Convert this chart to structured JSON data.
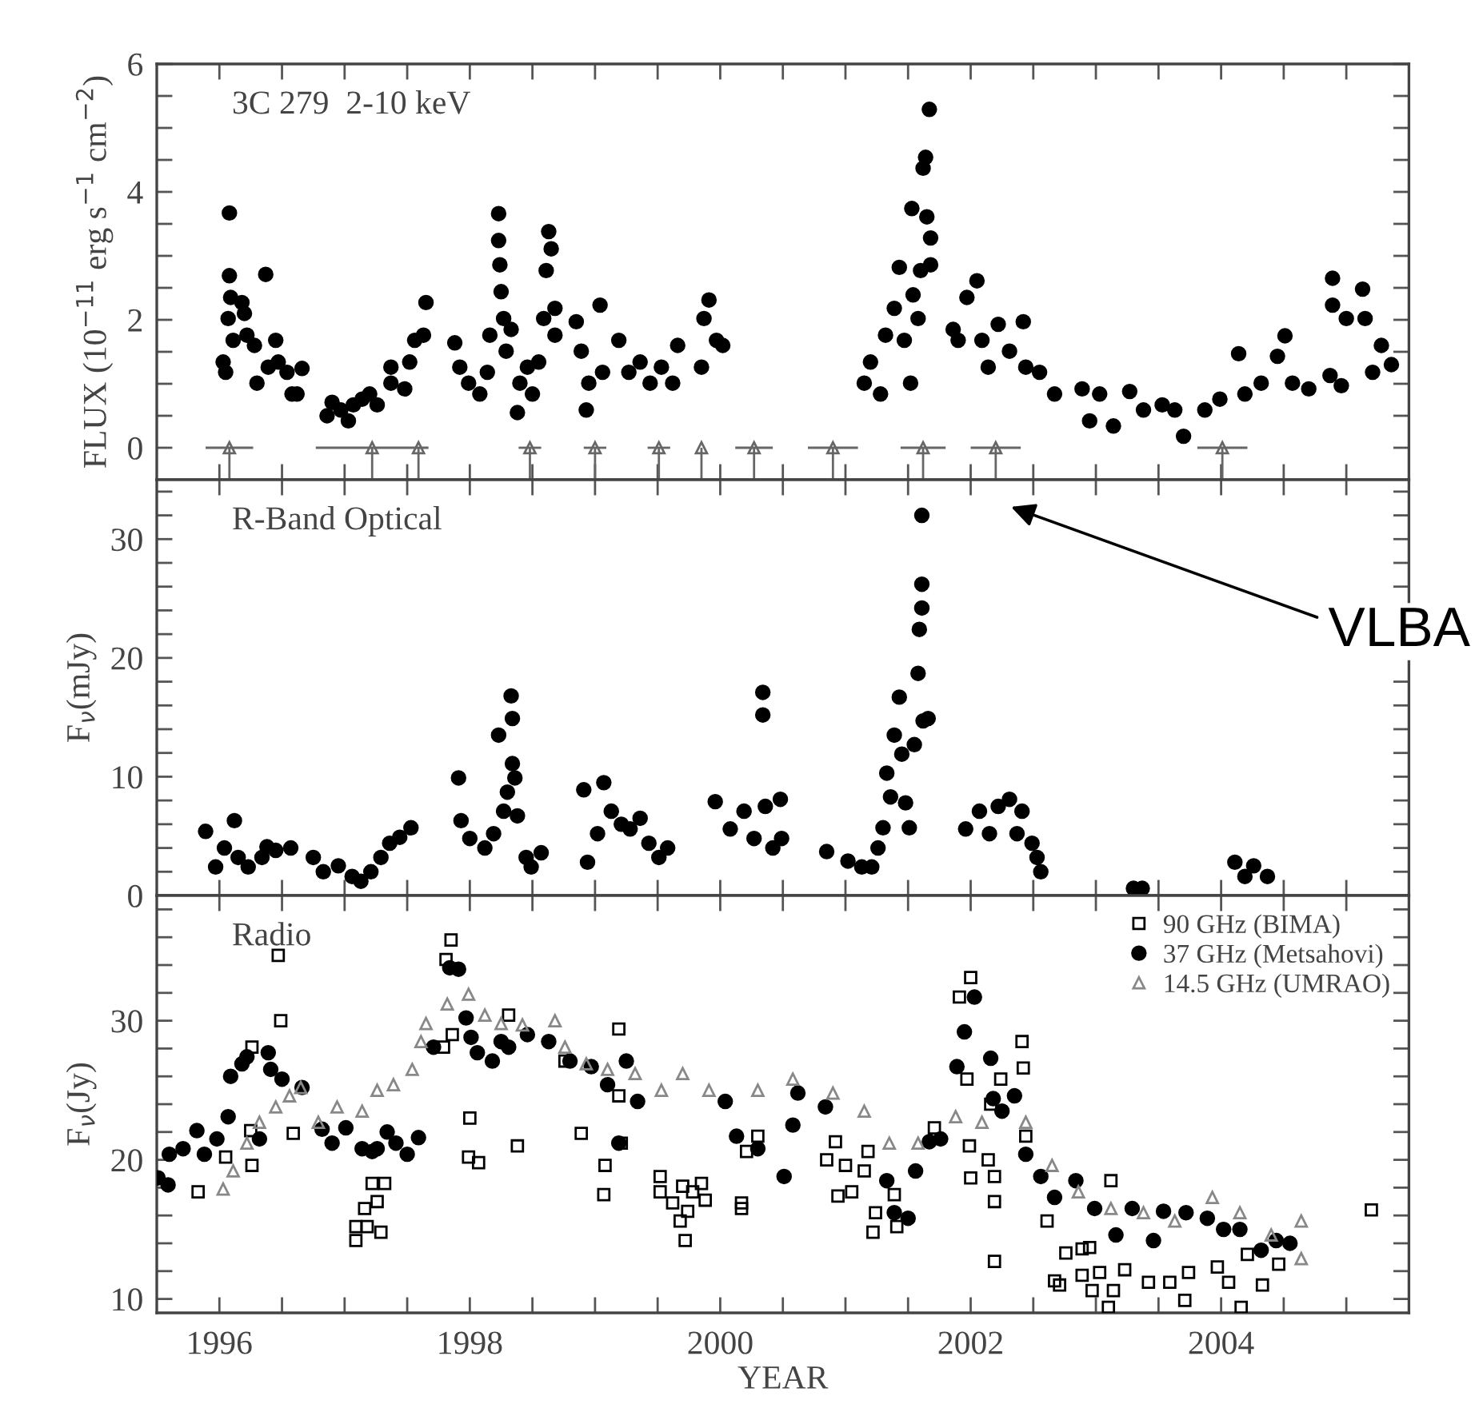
{
  "chart_data": [
    {
      "type": "scatter",
      "title": "3C 279  2-10 keV",
      "ylabel": "FLUX (10$^{−11}$ erg s$^{−1}$ cm$^{−2}$)",
      "xlim": [
        1995.5,
        2005.5
      ],
      "ylim": [
        -0.5,
        6
      ],
      "tick_labels": "y",
      "xticks": [
        {
          "value": 1996,
          "label": null
        },
        {
          "value": 1996.5,
          "label": null
        },
        {
          "value": 1997,
          "label": null
        },
        {
          "value": 1997.5,
          "label": null
        },
        {
          "value": 1998,
          "label": null
        },
        {
          "value": 1998.5,
          "label": null
        },
        {
          "value": 1999,
          "label": null
        },
        {
          "value": 1999.5,
          "label": null
        },
        {
          "value": 2000,
          "label": null
        },
        {
          "value": 2000.5,
          "label": null
        },
        {
          "value": 2001,
          "label": null
        },
        {
          "value": 2001.5,
          "label": null
        },
        {
          "value": 2002,
          "label": null
        },
        {
          "value": 2002.5,
          "label": null
        },
        {
          "value": 2003,
          "label": null
        },
        {
          "value": 2003.5,
          "label": null
        },
        {
          "value": 2004,
          "label": null
        },
        {
          "value": 2004.5,
          "label": null
        },
        {
          "value": 2005,
          "label": null
        }
      ],
      "yticks": [
        0,
        {
          "value": 0.5,
          "label": null
        },
        {
          "value": 1,
          "label": null
        },
        {
          "value": 1.5,
          "label": null
        },
        2,
        {
          "value": 2.5,
          "label": null
        },
        {
          "value": 3,
          "label": null
        },
        {
          "value": 3.5,
          "label": null
        },
        4,
        {
          "value": 4.5,
          "label": null
        },
        {
          "value": 5,
          "label": null
        },
        {
          "value": 5.5,
          "label": null
        },
        6
      ],
      "series": [
        {
          "marker": "circle",
          "color": "#000000",
          "x": [
            1996.03,
            1996.05,
            1996.07,
            1996.08,
            1996.08,
            1996.09,
            1996.11,
            1996.18,
            1996.2,
            1996.22,
            1996.28,
            1996.3,
            1996.37,
            1996.39,
            1996.45,
            1996.47,
            1996.54,
            1996.58,
            1996.62,
            1996.66,
            1996.86,
            1996.9,
            1996.97,
            1997.03,
            1997.07,
            1997.14,
            1997.2,
            1997.26,
            1997.37,
            1997.37,
            1997.48,
            1997.52,
            1997.56,
            1997.63,
            1997.65,
            1997.88,
            1997.92,
            1997.99,
            1998.08,
            1998.14,
            1998.16,
            1998.23,
            1998.23,
            1998.24,
            1998.25,
            1998.27,
            1998.29,
            1998.33,
            1998.38,
            1998.4,
            1998.46,
            1998.5,
            1998.55,
            1998.59,
            1998.61,
            1998.63,
            1998.65,
            1998.68,
            1998.68,
            1998.85,
            1998.89,
            1998.93,
            1998.95,
            1999.04,
            1999.06,
            1999.19,
            1999.27,
            1999.36,
            1999.44,
            1999.53,
            1999.62,
            1999.66,
            1999.85,
            1999.87,
            1999.91,
            1999.97,
            2000.02,
            2001.15,
            2001.2,
            2001.28,
            2001.32,
            2001.39,
            2001.43,
            2001.47,
            2001.52,
            2001.53,
            2001.54,
            2001.58,
            2001.6,
            2001.62,
            2001.64,
            2001.65,
            2001.67,
            2001.68,
            2001.68,
            2001.86,
            2001.9,
            2001.97,
            2002.05,
            2002.09,
            2002.14,
            2002.22,
            2002.31,
            2002.42,
            2002.44,
            2002.55,
            2002.67,
            2002.89,
            2002.95,
            2003.03,
            2003.14,
            2003.27,
            2003.38,
            2003.53,
            2003.63,
            2003.7,
            2003.87,
            2003.99,
            2004.14,
            2004.19,
            2004.32,
            2004.45,
            2004.51,
            2004.57,
            2004.7,
            2004.87,
            2004.89,
            2004.89,
            2004.96,
            2005.0,
            2005.13,
            2005.15,
            2005.21,
            2005.28,
            2005.36
          ],
          "values": [
            1.34,
            1.18,
            2.02,
            3.67,
            2.69,
            2.35,
            1.68,
            2.27,
            2.1,
            1.76,
            1.6,
            1.01,
            2.71,
            1.26,
            1.68,
            1.34,
            1.18,
            0.84,
            0.84,
            1.24,
            0.5,
            0.71,
            0.59,
            0.42,
            0.67,
            0.76,
            0.84,
            0.67,
            1.26,
            1.01,
            0.92,
            1.34,
            1.68,
            1.76,
            2.27,
            1.64,
            1.26,
            1.01,
            0.84,
            1.18,
            1.76,
            3.66,
            3.24,
            2.86,
            2.44,
            2.02,
            1.51,
            1.85,
            0.55,
            1.01,
            1.26,
            0.84,
            1.34,
            2.02,
            2.77,
            3.38,
            3.11,
            2.18,
            1.76,
            1.97,
            1.51,
            0.59,
            1.01,
            2.23,
            1.18,
            1.68,
            1.18,
            1.34,
            1.01,
            1.26,
            1.01,
            1.6,
            1.26,
            2.02,
            2.31,
            1.68,
            1.6,
            1.01,
            1.34,
            0.84,
            1.76,
            2.18,
            2.82,
            1.68,
            1.01,
            3.74,
            2.39,
            2.02,
            2.77,
            4.37,
            4.54,
            3.61,
            5.29,
            3.28,
            2.86,
            1.85,
            1.68,
            2.35,
            2.61,
            1.68,
            1.26,
            1.93,
            1.51,
            1.97,
            1.26,
            1.18,
            0.84,
            0.92,
            0.42,
            0.84,
            0.34,
            0.88,
            0.59,
            0.67,
            0.59,
            0.18,
            0.59,
            0.76,
            1.47,
            0.84,
            1.01,
            1.43,
            1.75,
            1.01,
            0.92,
            1.13,
            2.65,
            2.23,
            0.97,
            2.02,
            2.48,
            2.02,
            1.18,
            1.6,
            1.3
          ]
        },
        {
          "marker": "triangle",
          "color": "#666666",
          "x": [
            1996.08,
            1997.22,
            1997.59,
            1998.48,
            1999.0,
            1999.51,
            1999.85,
            2000.27,
            2000.9,
            2001.62,
            2002.2,
            2004.01
          ],
          "values": [
            0,
            0,
            0,
            0,
            0,
            0,
            0,
            0,
            0,
            0,
            0,
            0
          ],
          "errors": [
            [
              -0.5,
              0
            ],
            [
              -0.5,
              0
            ],
            [
              -0.5,
              0
            ],
            [
              -0.5,
              0
            ],
            [
              -0.5,
              0
            ],
            [
              -0.5,
              0
            ],
            [
              -0.5,
              0
            ],
            [
              -0.5,
              0
            ],
            [
              -0.5,
              0
            ],
            [
              -0.5,
              0
            ],
            [
              -0.5,
              0
            ],
            [
              -0.5,
              0
            ]
          ],
          "xerrors": [
            0.19,
            0.45,
            null,
            0.09,
            0.09,
            0.09,
            null,
            0.15,
            0.2,
            0.18,
            0.2,
            0.2
          ]
        }
      ]
    },
    {
      "type": "scatter",
      "title": "R-Band Optical",
      "ylabel": "F$_{ν}$(mJy)",
      "xlim": [
        1995.5,
        2005.5
      ],
      "ylim": [
        0,
        35
      ],
      "tick_labels": "y",
      "xticks": [
        {
          "value": 1996,
          "label": null
        },
        {
          "value": 1996.5,
          "label": null
        },
        {
          "value": 1997,
          "label": null
        },
        {
          "value": 1997.5,
          "label": null
        },
        {
          "value": 1998,
          "label": null
        },
        {
          "value": 1998.5,
          "label": null
        },
        {
          "value": 1999,
          "label": null
        },
        {
          "value": 1999.5,
          "label": null
        },
        {
          "value": 2000,
          "label": null
        },
        {
          "value": 2000.5,
          "label": null
        },
        {
          "value": 2001,
          "label": null
        },
        {
          "value": 2001.5,
          "label": null
        },
        {
          "value": 2002,
          "label": null
        },
        {
          "value": 2002.5,
          "label": null
        },
        {
          "value": 2003,
          "label": null
        },
        {
          "value": 2003.5,
          "label": null
        },
        {
          "value": 2004,
          "label": null
        },
        {
          "value": 2004.5,
          "label": null
        },
        {
          "value": 2005,
          "label": null
        }
      ],
      "yticks": [
        0,
        {
          "value": 2,
          "label": null
        },
        {
          "value": 4,
          "label": null
        },
        {
          "value": 6,
          "label": null
        },
        {
          "value": 8,
          "label": null
        },
        10,
        {
          "value": 12,
          "label": null
        },
        {
          "value": 14,
          "label": null
        },
        {
          "value": 16,
          "label": null
        },
        {
          "value": 18,
          "label": null
        },
        20,
        {
          "value": 22,
          "label": null
        },
        {
          "value": 24,
          "label": null
        },
        {
          "value": 26,
          "label": null
        },
        {
          "value": 28,
          "label": null
        },
        30,
        {
          "value": 32,
          "label": null
        },
        {
          "value": 34,
          "label": null
        }
      ],
      "annotations": [
        "VLBA"
      ],
      "series": [
        {
          "marker": "circle",
          "color": "#000000",
          "x": [
            1995.89,
            1995.97,
            1996.04,
            1996.12,
            1996.15,
            1996.23,
            1996.34,
            1996.38,
            1996.45,
            1996.57,
            1996.75,
            1996.83,
            1996.95,
            1997.06,
            1997.13,
            1997.21,
            1997.29,
            1997.36,
            1997.44,
            1997.53,
            1997.91,
            1997.93,
            1998.0,
            1998.12,
            1998.19,
            1998.23,
            1998.27,
            1998.3,
            1998.33,
            1998.34,
            1998.34,
            1998.36,
            1998.38,
            1998.45,
            1998.49,
            1998.57,
            1998.91,
            1998.94,
            1999.02,
            1999.07,
            1999.13,
            1999.21,
            1999.28,
            1999.36,
            1999.43,
            1999.51,
            1999.58,
            1999.96,
            2000.08,
            2000.19,
            2000.27,
            2000.34,
            2000.34,
            2000.36,
            2000.42,
            2000.48,
            2000.49,
            2000.85,
            2001.02,
            2001.13,
            2001.21,
            2001.26,
            2001.3,
            2001.33,
            2001.36,
            2001.39,
            2001.43,
            2001.45,
            2001.48,
            2001.51,
            2001.55,
            2001.58,
            2001.59,
            2001.61,
            2001.61,
            2001.61,
            2001.62,
            2001.66,
            2001.96,
            2002.07,
            2002.15,
            2002.22,
            2002.31,
            2002.37,
            2002.41,
            2002.49,
            2002.53,
            2002.56,
            2003.3,
            2003.37,
            2004.11,
            2004.19,
            2004.26,
            2004.37
          ],
          "values": [
            5.4,
            2.4,
            4.0,
            6.3,
            3.2,
            2.4,
            3.2,
            4.1,
            3.8,
            4.0,
            3.2,
            2.0,
            2.5,
            1.6,
            1.2,
            2.0,
            3.2,
            4.4,
            4.9,
            5.7,
            9.9,
            6.3,
            4.8,
            4.0,
            5.2,
            13.5,
            7.1,
            8.7,
            16.8,
            14.9,
            11.1,
            9.9,
            6.7,
            3.2,
            2.4,
            3.6,
            8.9,
            2.8,
            5.2,
            9.5,
            7.1,
            6.0,
            5.6,
            6.5,
            4.4,
            3.2,
            4.0,
            7.9,
            5.6,
            7.1,
            4.8,
            17.1,
            15.2,
            7.5,
            4.0,
            8.1,
            4.8,
            3.7,
            2.9,
            2.4,
            2.4,
            4.0,
            5.7,
            10.3,
            8.3,
            13.5,
            16.7,
            11.9,
            7.8,
            5.7,
            12.7,
            18.7,
            22.4,
            24.2,
            26.2,
            32.0,
            14.7,
            14.9,
            5.6,
            7.1,
            5.2,
            7.5,
            8.1,
            5.2,
            7.1,
            4.4,
            3.2,
            2.0,
            0.6,
            0.6,
            2.8,
            1.6,
            2.5,
            1.6
          ]
        }
      ]
    },
    {
      "type": "scatter",
      "title": "Radio",
      "xlabel": "YEAR",
      "ylabel": "F$_{ν}$(Jy)",
      "xlim": [
        1995.5,
        2005.5
      ],
      "ylim": [
        9,
        39
      ],
      "legend": "top right",
      "xticks": [
        {
          "value": 1996,
          "label": "1996"
        },
        {
          "value": 1996.5,
          "label": null
        },
        {
          "value": 1997,
          "label": null
        },
        {
          "value": 1997.5,
          "label": null
        },
        {
          "value": 1998,
          "label": "1998"
        },
        {
          "value": 1998.5,
          "label": null
        },
        {
          "value": 1999,
          "label": null
        },
        {
          "value": 1999.5,
          "label": null
        },
        {
          "value": 2000,
          "label": "2000"
        },
        {
          "value": 2000.5,
          "label": null
        },
        {
          "value": 2001,
          "label": null
        },
        {
          "value": 2001.5,
          "label": null
        },
        {
          "value": 2002,
          "label": "2002"
        },
        {
          "value": 2002.5,
          "label": null
        },
        {
          "value": 2003,
          "label": null
        },
        {
          "value": 2003.5,
          "label": null
        },
        {
          "value": 2004,
          "label": "2004"
        },
        {
          "value": 2004.5,
          "label": null
        },
        {
          "value": 2005,
          "label": null
        }
      ],
      "yticks": [
        10,
        {
          "value": 12,
          "label": null
        },
        {
          "value": 14,
          "label": null
        },
        {
          "value": 16,
          "label": null
        },
        {
          "value": 18,
          "label": null
        },
        20,
        {
          "value": 22,
          "label": null
        },
        {
          "value": 24,
          "label": null
        },
        {
          "value": 26,
          "label": null
        },
        {
          "value": 28,
          "label": null
        },
        30,
        {
          "value": 32,
          "label": null
        },
        {
          "value": 34,
          "label": null
        },
        {
          "value": 36,
          "label": null
        },
        {
          "value": 38,
          "label": null
        }
      ],
      "series": [
        {
          "name": "90 GHz (BIMA)",
          "marker": "square",
          "color": "#000000",
          "x": [
            1995.83,
            1996.05,
            1996.25,
            1996.26,
            1996.26,
            1996.47,
            1996.49,
            1996.59,
            1997.09,
            1997.09,
            1997.16,
            1997.18,
            1997.22,
            1997.26,
            1997.29,
            1997.32,
            1997.79,
            1997.81,
            1997.85,
            1997.86,
            1998.0,
            1997.99,
            1998.07,
            1998.31,
            1998.38,
            1998.89,
            1998.76,
            1999.07,
            1999.08,
            1999.19,
            1999.19,
            1999.21,
            1999.52,
            1999.52,
            1999.62,
            1999.68,
            1999.7,
            1999.72,
            1999.74,
            1999.78,
            1999.85,
            1999.88,
            2000.17,
            2000.17,
            2000.21,
            2000.3,
            2000.85,
            2000.92,
            2000.94,
            2001.0,
            2001.05,
            2001.15,
            2001.18,
            2001.22,
            2001.24,
            2001.39,
            2001.41,
            2001.71,
            2001.91,
            2001.97,
            2001.99,
            2002.0,
            2002.0,
            2002.14,
            2002.16,
            2002.19,
            2002.19,
            2002.19,
            2002.24,
            2002.41,
            2002.42,
            2002.44,
            2002.61,
            2002.76,
            2002.89,
            2002.95,
            2002.67,
            2002.71,
            2002.89,
            2002.97,
            2003.03,
            2003.1,
            2003.12,
            2003.14,
            2003.23,
            2003.42,
            2003.59,
            2003.71,
            2003.74,
            2003.97,
            2004.06,
            2004.16,
            2004.21,
            2004.33,
            2004.46,
            2005.2
          ],
          "values": [
            17.7,
            20.2,
            22.1,
            19.6,
            28.1,
            34.7,
            30.0,
            21.9,
            15.2,
            14.2,
            16.5,
            15.2,
            18.3,
            17.0,
            14.8,
            18.3,
            28.1,
            34.4,
            35.8,
            29.0,
            23.0,
            20.2,
            19.8,
            30.4,
            21.0,
            21.9,
            27.1,
            17.5,
            19.6,
            29.4,
            24.6,
            21.2,
            18.8,
            17.7,
            16.9,
            15.6,
            18.1,
            14.2,
            16.3,
            17.7,
            18.3,
            17.1,
            16.9,
            16.5,
            20.6,
            21.7,
            20.0,
            21.3,
            17.4,
            19.6,
            17.7,
            19.2,
            20.6,
            14.8,
            16.2,
            17.5,
            15.2,
            22.3,
            31.7,
            25.8,
            21.0,
            33.1,
            18.7,
            20.0,
            24.0,
            18.8,
            17.0,
            12.7,
            25.8,
            28.5,
            26.6,
            21.7,
            15.6,
            13.3,
            13.6,
            13.7,
            11.3,
            11.0,
            11.7,
            10.6,
            11.9,
            9.4,
            18.5,
            10.6,
            12.1,
            11.2,
            11.2,
            9.9,
            11.9,
            12.3,
            11.2,
            9.4,
            13.2,
            11.0,
            12.5,
            16.4
          ]
        },
        {
          "name": "37 GHz (Metsahovi)",
          "marker": "circle",
          "color": "#000000",
          "x": [
            1995.51,
            1995.59,
            1995.6,
            1995.71,
            1995.82,
            1995.88,
            1995.98,
            1996.07,
            1996.09,
            1996.18,
            1996.22,
            1996.32,
            1996.39,
            1996.41,
            1996.5,
            1996.66,
            1996.82,
            1996.9,
            1997.01,
            1997.14,
            1997.22,
            1997.26,
            1997.34,
            1997.41,
            1997.5,
            1997.59,
            1997.71,
            1997.84,
            1997.91,
            1997.97,
            1998.01,
            1998.06,
            1998.18,
            1998.25,
            1998.31,
            1998.46,
            1998.63,
            1998.8,
            1998.97,
            1999.1,
            1999.19,
            1999.25,
            1999.34,
            2000.04,
            2000.13,
            2000.3,
            2000.51,
            2000.58,
            2000.62,
            2000.84,
            2001.33,
            2001.39,
            2001.5,
            2001.56,
            2001.67,
            2001.76,
            2001.89,
            2001.95,
            2002.03,
            2002.16,
            2002.18,
            2002.25,
            2002.35,
            2002.44,
            2002.56,
            2002.67,
            2002.84,
            2002.99,
            2003.16,
            2003.29,
            2003.46,
            2003.54,
            2003.72,
            2003.89,
            2004.02,
            2004.15,
            2004.32,
            2004.44,
            2004.55
          ],
          "values": [
            18.7,
            18.2,
            20.4,
            20.8,
            22.1,
            20.4,
            21.5,
            23.1,
            26.0,
            26.9,
            27.4,
            21.5,
            27.7,
            26.5,
            25.8,
            25.2,
            22.2,
            21.2,
            22.3,
            20.8,
            20.6,
            20.8,
            22.0,
            21.2,
            20.4,
            21.6,
            28.1,
            33.8,
            33.7,
            30.2,
            28.8,
            27.7,
            27.1,
            28.5,
            28.1,
            29.0,
            28.5,
            27.1,
            26.7,
            25.4,
            21.2,
            27.1,
            24.2,
            24.2,
            21.7,
            20.8,
            18.8,
            22.5,
            24.8,
            23.8,
            18.5,
            16.2,
            15.8,
            19.2,
            21.3,
            21.5,
            26.7,
            29.2,
            31.7,
            27.3,
            24.4,
            23.5,
            24.6,
            20.4,
            18.8,
            17.3,
            18.5,
            16.5,
            14.6,
            16.5,
            14.2,
            16.3,
            16.2,
            15.8,
            15.0,
            15.0,
            13.5,
            14.2,
            14.0
          ]
        },
        {
          "name": "14.5 GHz (UMRAO)",
          "marker": "triangle",
          "color": "#888888",
          "x": [
            1996.03,
            1996.11,
            1996.22,
            1996.32,
            1996.45,
            1996.56,
            1996.65,
            1996.79,
            1996.94,
            1997.14,
            1997.26,
            1997.39,
            1997.54,
            1997.61,
            1997.65,
            1997.82,
            1997.99,
            1998.12,
            1998.25,
            1998.42,
            1998.68,
            1998.76,
            1998.93,
            1999.1,
            1999.32,
            1999.53,
            1999.7,
            1999.91,
            2000.3,
            2000.58,
            2000.9,
            2001.15,
            2001.35,
            2001.58,
            2001.88,
            2002.09,
            2002.44,
            2002.65,
            2002.86,
            2003.12,
            2003.38,
            2003.63,
            2003.93,
            2004.15,
            2004.4,
            2004.64,
            2004.64
          ],
          "values": [
            17.9,
            19.2,
            21.2,
            22.7,
            23.8,
            24.6,
            25.2,
            22.7,
            23.8,
            23.5,
            25.0,
            25.4,
            26.5,
            28.5,
            29.8,
            31.2,
            31.9,
            30.4,
            29.8,
            29.7,
            30.0,
            28.1,
            26.9,
            26.5,
            26.2,
            25.0,
            26.2,
            25.0,
            25.0,
            25.8,
            24.8,
            23.5,
            21.2,
            21.2,
            23.1,
            22.7,
            22.7,
            19.6,
            17.7,
            16.5,
            16.2,
            15.6,
            17.3,
            16.2,
            14.6,
            15.6,
            12.9
          ]
        }
      ]
    }
  ]
}
